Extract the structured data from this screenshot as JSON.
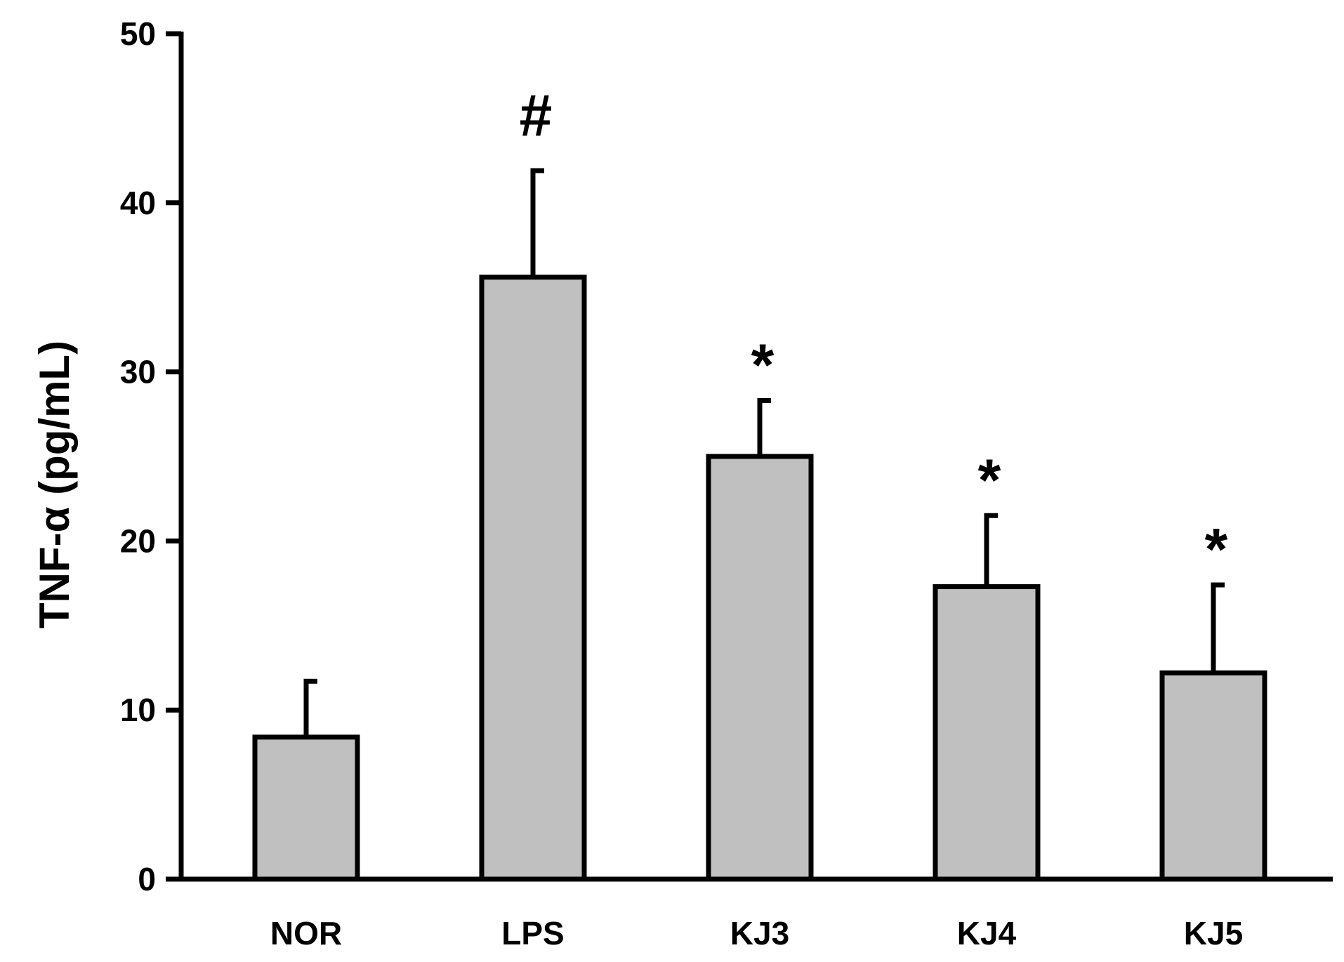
{
  "chart_data": {
    "type": "bar",
    "title": "",
    "xlabel": "",
    "ylabel": "TNF-α (pg/mL)",
    "ylim": [
      0,
      50
    ],
    "yticks": [
      0,
      10,
      20,
      30,
      40,
      50
    ],
    "grid": false,
    "legend": "none",
    "categories": [
      "NOR",
      "LPS",
      "KJ3",
      "KJ4",
      "KJ5"
    ],
    "values": [
      8.4,
      35.6,
      25.0,
      17.3,
      12.2
    ],
    "errors": [
      3.3,
      6.3,
      3.3,
      4.2,
      5.2
    ],
    "annotations": [
      "",
      "#",
      "*",
      "*",
      "*"
    ],
    "colors": {
      "bar_fill": "#c0c0c0",
      "bar_stroke": "#000000",
      "axis": "#000000"
    }
  }
}
